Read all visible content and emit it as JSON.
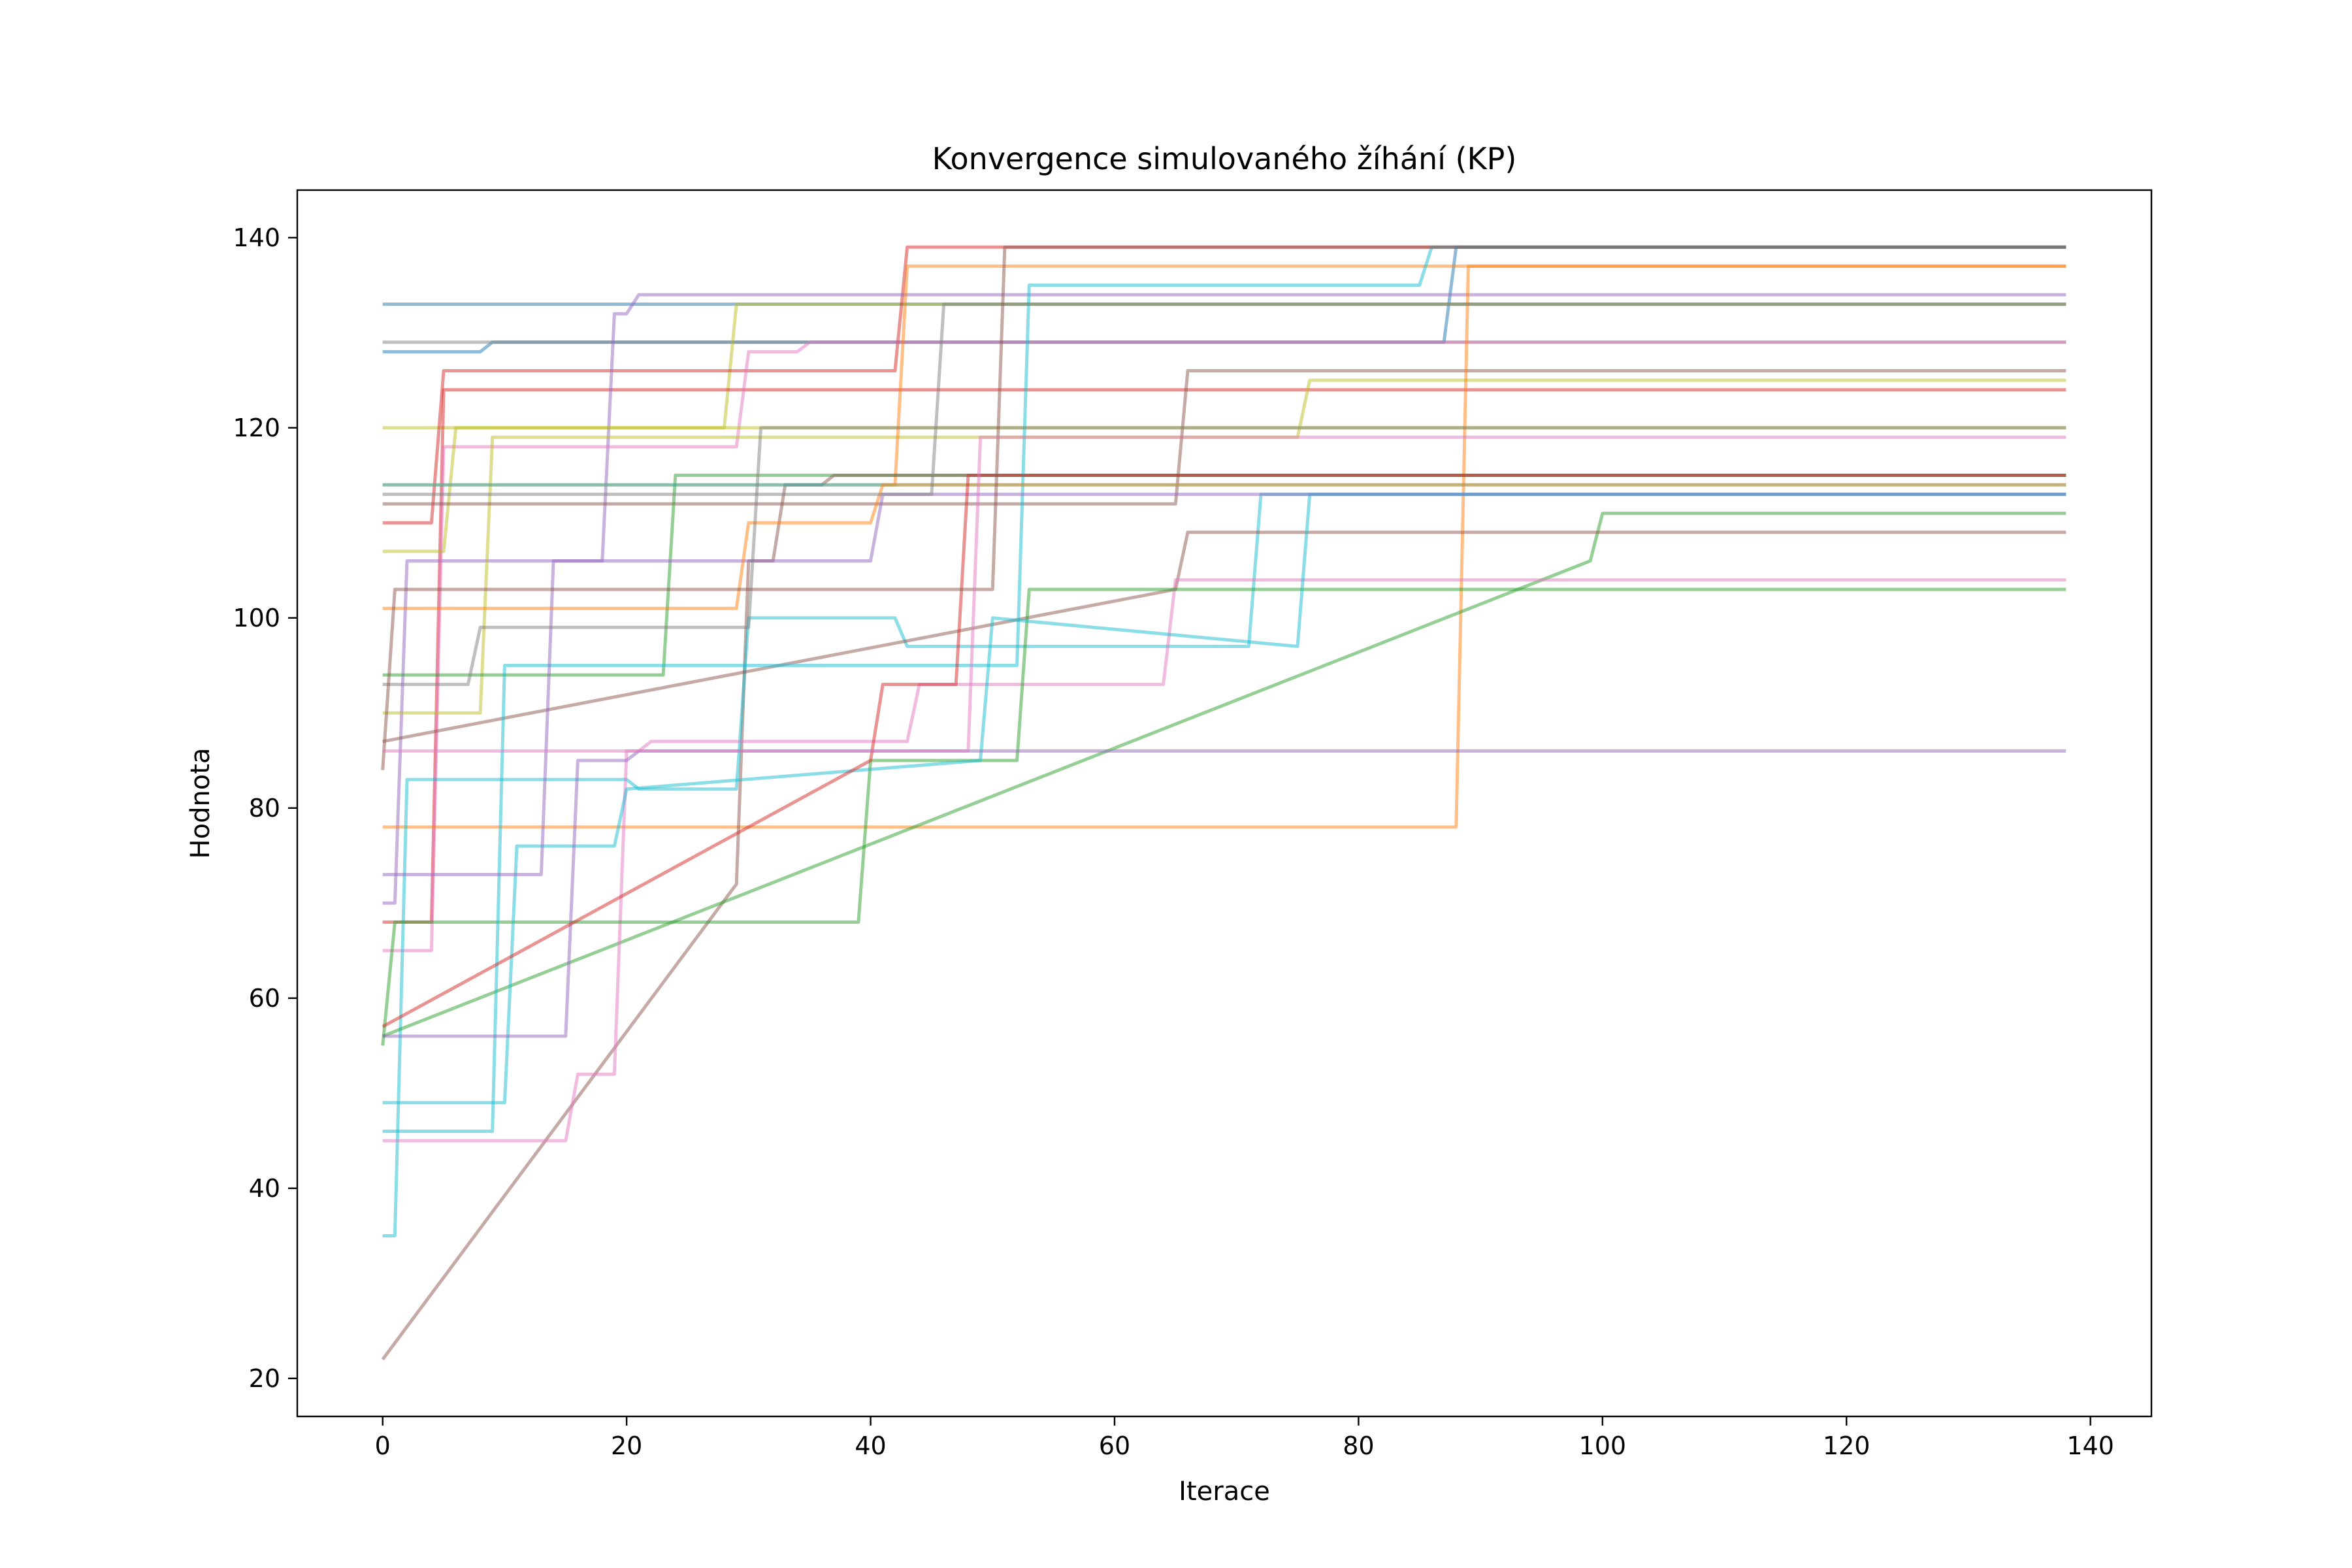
{
  "chart_data": {
    "type": "line",
    "title": "Konvergence simulovaného žíhání (KP)",
    "xlabel": "Iterace",
    "ylabel": "Hodnota",
    "xlim": [
      -7,
      145
    ],
    "ylim": [
      16,
      145
    ],
    "xticks": [
      0,
      20,
      40,
      60,
      80,
      100,
      120,
      140
    ],
    "yticks": [
      20,
      40,
      60,
      80,
      100,
      120,
      140
    ],
    "xtick_labels": [
      "0",
      "20",
      "40",
      "60",
      "80",
      "100",
      "120",
      "140"
    ],
    "ytick_labels": [
      "20",
      "40",
      "60",
      "80",
      "100",
      "120",
      "140"
    ],
    "grid": false,
    "legend": "none",
    "series_alpha": 0.5,
    "series": [
      {
        "color": "#1f77b4",
        "x": [
          0,
          138
        ],
        "y": [
          133,
          133
        ]
      },
      {
        "color": "#1f77b4",
        "x": [
          0,
          8,
          9,
          87,
          88,
          138
        ],
        "y": [
          128,
          128,
          129,
          129,
          139,
          139
        ]
      },
      {
        "color": "#7f7f7f",
        "x": [
          0,
          8,
          9,
          138
        ],
        "y": [
          129,
          129,
          129,
          129
        ]
      },
      {
        "color": "#bcbd22",
        "x": [
          0,
          7,
          8,
          28,
          29,
          138
        ],
        "y": [
          120,
          120,
          120,
          120,
          133,
          133
        ]
      },
      {
        "color": "#d62728",
        "x": [
          0,
          4,
          5,
          42,
          43,
          138
        ],
        "y": [
          110,
          110,
          126,
          126,
          139,
          139
        ]
      },
      {
        "color": "#d62728",
        "x": [
          0,
          4,
          5,
          138
        ],
        "y": [
          68,
          68,
          124,
          124
        ]
      },
      {
        "color": "#9467bd",
        "x": [
          0,
          1,
          2,
          18,
          19,
          20,
          21,
          138
        ],
        "y": [
          70,
          70,
          106,
          106,
          132,
          132,
          134,
          134
        ]
      },
      {
        "color": "#e377c2",
        "x": [
          0,
          4,
          5,
          29,
          30,
          34,
          35,
          138
        ],
        "y": [
          65,
          65,
          118,
          118,
          128,
          128,
          129,
          129
        ]
      },
      {
        "color": "#bcbd22",
        "x": [
          0,
          5,
          6,
          138
        ],
        "y": [
          107,
          107,
          120,
          120
        ]
      },
      {
        "color": "#bcbd22",
        "x": [
          0,
          8,
          9,
          75,
          76,
          138
        ],
        "y": [
          90,
          90,
          119,
          119,
          125,
          125
        ]
      },
      {
        "color": "#8c564b",
        "x": [
          0,
          65,
          66,
          138
        ],
        "y": [
          112,
          112,
          126,
          126
        ]
      },
      {
        "color": "#ff7f0e",
        "x": [
          0,
          42,
          43,
          138
        ],
        "y": [
          114,
          114,
          137,
          137
        ]
      },
      {
        "color": "#ff7f0e",
        "x": [
          0,
          88,
          89,
          138
        ],
        "y": [
          78,
          78,
          137,
          137
        ]
      },
      {
        "color": "#2ca02c",
        "x": [
          0,
          23,
          24,
          36,
          37,
          138
        ],
        "y": [
          94,
          94,
          115,
          115,
          115,
          115
        ]
      },
      {
        "color": "#8c564b",
        "x": [
          0,
          29,
          30,
          32,
          33,
          36,
          37,
          138
        ],
        "y": [
          22,
          72,
          106,
          106,
          114,
          114,
          115,
          115
        ]
      },
      {
        "color": "#17becf",
        "x": [
          0,
          77,
          78,
          138
        ],
        "y": [
          114,
          114,
          114,
          114
        ]
      },
      {
        "color": "#17becf",
        "x": [
          0,
          1,
          2,
          20,
          21,
          29,
          30,
          42,
          43,
          71,
          72,
          138
        ],
        "y": [
          35,
          35,
          83,
          83,
          82,
          82,
          100,
          100,
          97,
          97,
          113,
          113
        ]
      },
      {
        "color": "#2ca02c",
        "x": [
          0,
          99,
          100,
          138
        ],
        "y": [
          56,
          106,
          111,
          111
        ]
      },
      {
        "color": "#8c564b",
        "x": [
          0,
          65,
          66,
          138
        ],
        "y": [
          87,
          103,
          109,
          109
        ]
      },
      {
        "color": "#e377c2",
        "x": [
          0,
          15,
          16,
          19,
          20,
          21,
          22,
          43,
          44,
          64,
          65,
          138
        ],
        "y": [
          45,
          45,
          52,
          52,
          86,
          86,
          87,
          87,
          93,
          93,
          104,
          104
        ]
      },
      {
        "color": "#2ca02c",
        "x": [
          0,
          1,
          2,
          39,
          40,
          52,
          53,
          138
        ],
        "y": [
          55,
          68,
          68,
          68,
          85,
          85,
          103,
          103
        ]
      },
      {
        "color": "#17becf",
        "x": [
          0,
          9,
          10,
          52,
          53,
          85,
          86,
          138
        ],
        "y": [
          46,
          46,
          95,
          95,
          135,
          135,
          139,
          139
        ]
      },
      {
        "color": "#17becf",
        "x": [
          0,
          10,
          11,
          19,
          20,
          49,
          50,
          75,
          76,
          138
        ],
        "y": [
          49,
          49,
          76,
          76,
          82,
          85,
          100,
          97,
          113,
          113
        ]
      },
      {
        "color": "#9467bd",
        "x": [
          0,
          13,
          14,
          40,
          41,
          138
        ],
        "y": [
          73,
          73,
          106,
          106,
          113,
          113
        ]
      },
      {
        "color": "#9467bd",
        "x": [
          0,
          15,
          16,
          20,
          21,
          138
        ],
        "y": [
          56,
          56,
          85,
          85,
          86,
          86
        ]
      },
      {
        "color": "#ff7f0e",
        "x": [
          0,
          29,
          30,
          40,
          41,
          138
        ],
        "y": [
          101,
          101,
          110,
          110,
          114,
          114
        ]
      },
      {
        "color": "#d62728",
        "x": [
          0,
          40,
          41,
          47,
          48,
          138
        ],
        "y": [
          57,
          85,
          93,
          93,
          115,
          115
        ]
      },
      {
        "color": "#7f7f7f",
        "x": [
          0,
          7,
          8,
          30,
          31,
          138
        ],
        "y": [
          93,
          93,
          99,
          99,
          120,
          120
        ]
      },
      {
        "color": "#7f7f7f",
        "x": [
          0,
          45,
          46,
          138
        ],
        "y": [
          113,
          113,
          133,
          133
        ]
      },
      {
        "color": "#8c564b",
        "x": [
          0,
          1,
          2,
          50,
          51,
          138
        ],
        "y": [
          84,
          103,
          103,
          103,
          139,
          139
        ]
      },
      {
        "color": "#e377c2",
        "x": [
          0,
          48,
          49,
          138
        ],
        "y": [
          86,
          86,
          119,
          119
        ]
      }
    ]
  }
}
